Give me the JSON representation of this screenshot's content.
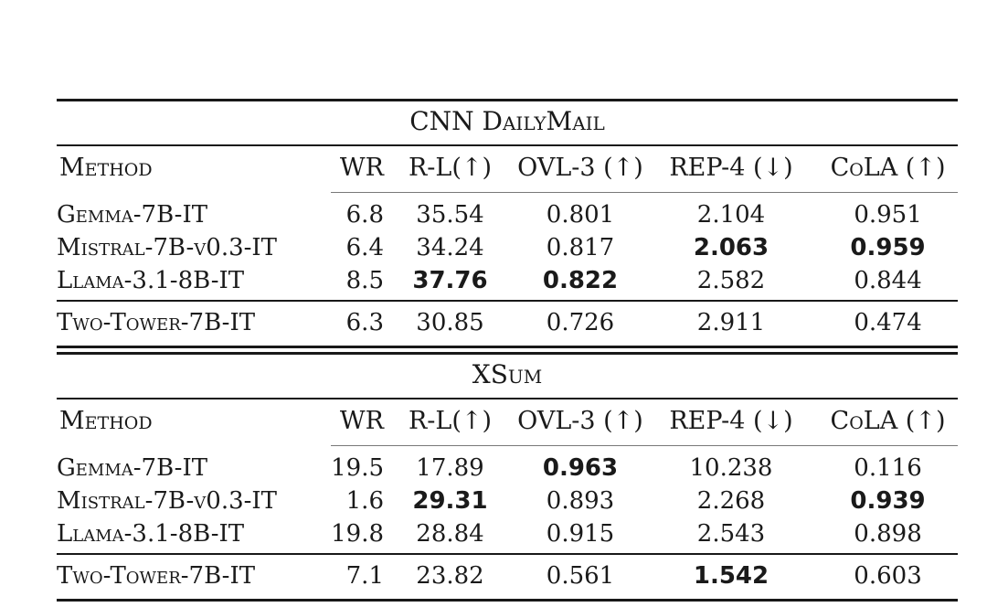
{
  "colors": {
    "background": "#ffffff",
    "text": "#1a1a1a",
    "rule": "#181818",
    "cmidrule": "#787878"
  },
  "tables": [
    {
      "title": "CNN DailyMail",
      "columns": [
        "Method",
        "WR",
        "R-L(↑)",
        "OVL-3 (↑)",
        "REP-4 (↓)",
        "CoLA (↑)"
      ],
      "rows": [
        {
          "method": "Gemma-7B-IT",
          "cells": [
            "6.8",
            "35.54",
            "0.801",
            "2.104",
            "0.951"
          ],
          "bold": [
            false,
            false,
            false,
            false,
            false
          ]
        },
        {
          "method": "Mistral-7B-v0.3-IT",
          "cells": [
            "6.4",
            "34.24",
            "0.817",
            "2.063",
            "0.959"
          ],
          "bold": [
            false,
            false,
            false,
            true,
            true
          ]
        },
        {
          "method": "Llama-3.1-8B-IT",
          "cells": [
            "8.5",
            "37.76",
            "0.822",
            "2.582",
            "0.844"
          ],
          "bold": [
            false,
            true,
            true,
            false,
            false
          ]
        }
      ],
      "footer": {
        "method": "Two-Tower-7B-IT",
        "cells": [
          "6.3",
          "30.85",
          "0.726",
          "2.911",
          "0.474"
        ],
        "bold": [
          false,
          false,
          false,
          false,
          false
        ]
      }
    },
    {
      "title": "XSum",
      "columns": [
        "Method",
        "WR",
        "R-L(↑)",
        "OVL-3 (↑)",
        "REP-4 (↓)",
        "CoLA (↑)"
      ],
      "rows": [
        {
          "method": "Gemma-7B-IT",
          "cells": [
            "19.5",
            "17.89",
            "0.963",
            "10.238",
            "0.116"
          ],
          "bold": [
            false,
            false,
            true,
            false,
            false
          ]
        },
        {
          "method": "Mistral-7B-v0.3-IT",
          "cells": [
            "1.6",
            "29.31",
            "0.893",
            "2.268",
            "0.939"
          ],
          "bold": [
            false,
            true,
            false,
            false,
            true
          ]
        },
        {
          "method": "Llama-3.1-8B-IT",
          "cells": [
            "19.8",
            "28.84",
            "0.915",
            "2.543",
            "0.898"
          ],
          "bold": [
            false,
            false,
            false,
            false,
            false
          ]
        }
      ],
      "footer": {
        "method": "Two-Tower-7B-IT",
        "cells": [
          "7.1",
          "23.82",
          "0.561",
          "1.542",
          "0.603"
        ],
        "bold": [
          false,
          false,
          false,
          true,
          false
        ]
      }
    }
  ]
}
